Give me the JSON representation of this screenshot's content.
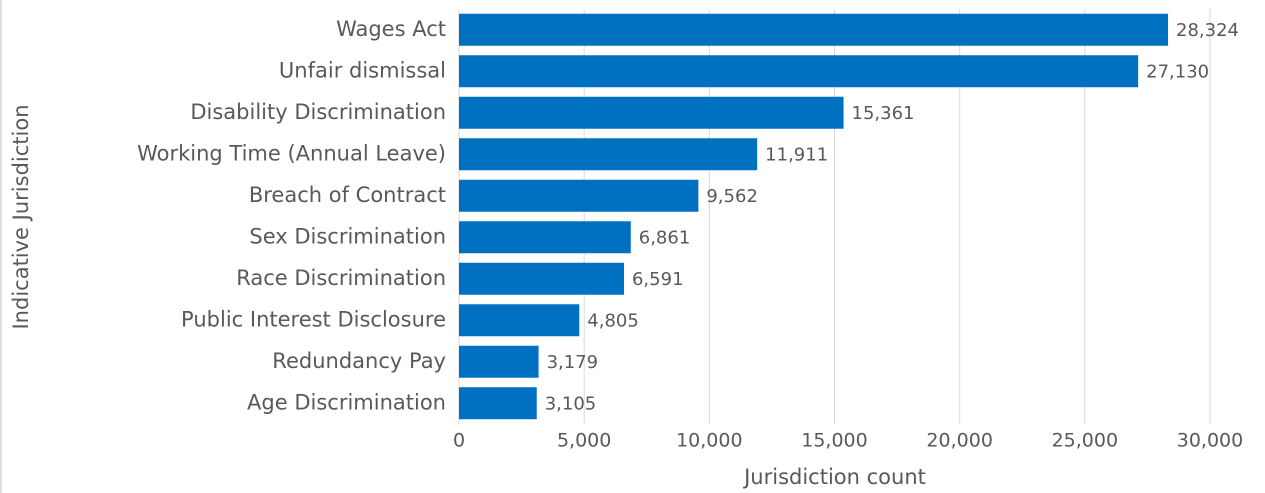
{
  "chart_data": {
    "type": "bar",
    "orientation": "horizontal",
    "categories": [
      "Wages Act",
      "Unfair dismissal",
      "Disability Discrimination",
      "Working Time (Annual Leave)",
      "Breach of Contract",
      "Sex Discrimination",
      "Race Discrimination",
      "Public Interest Disclosure",
      "Redundancy Pay",
      "Age Discrimination"
    ],
    "values": [
      28324,
      27130,
      15361,
      11911,
      9562,
      6861,
      6591,
      4805,
      3179,
      3105
    ],
    "value_labels": [
      "28,324",
      "27,130",
      "15,361",
      "11,911",
      "9,562",
      "6,861",
      "6,591",
      "4,805",
      "3,179",
      "3,105"
    ],
    "color": "#0070c0",
    "xlim": [
      0,
      30000
    ],
    "xticks": [
      0,
      {
        "value": 5000,
        "label": "5,000"
      },
      {
        "value": 10000,
        "label": "10,000"
      },
      {
        "value": 15000,
        "label": "15,000"
      },
      {
        "value": 20000,
        "label": "20,000"
      },
      {
        "value": 25000,
        "label": "25,000"
      },
      {
        "value": 30000,
        "label": "30,000"
      }
    ],
    "x_label": "Jurisdiction count",
    "y_label": "Indicative Jurisdiction",
    "grid": true
  }
}
